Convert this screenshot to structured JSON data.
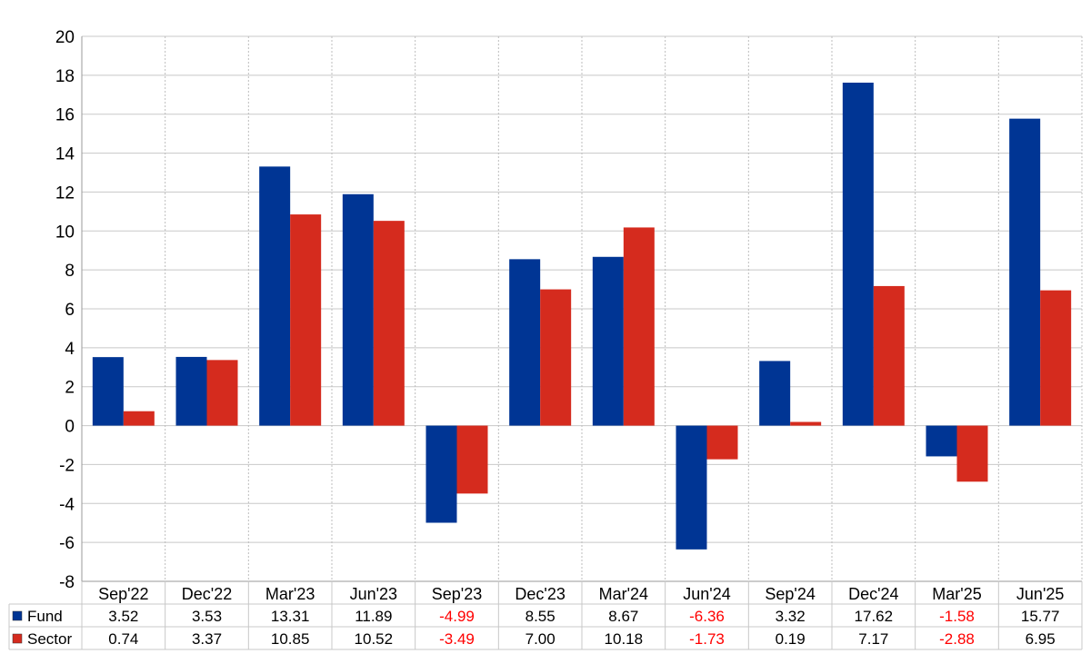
{
  "chart_data": {
    "type": "bar",
    "categories": [
      "Sep'22",
      "Dec'22",
      "Mar'23",
      "Jun'23",
      "Sep'23",
      "Dec'23",
      "Mar'24",
      "Jun'24",
      "Sep'24",
      "Dec'24",
      "Mar'25",
      "Jun'25"
    ],
    "series": [
      {
        "name": "Fund",
        "color": "#003594",
        "values": [
          3.52,
          3.53,
          13.31,
          11.89,
          -4.99,
          8.55,
          8.67,
          -6.36,
          3.32,
          17.62,
          -1.58,
          15.77
        ],
        "labels": [
          "3.52",
          "3.53",
          "13.31",
          "11.89",
          "-4.99",
          "8.55",
          "8.67",
          "-6.36",
          "3.32",
          "17.62",
          "-1.58",
          "15.77"
        ]
      },
      {
        "name": "Sector",
        "color": "#d52b1e",
        "values": [
          0.74,
          3.37,
          10.85,
          10.52,
          -3.49,
          7.0,
          10.18,
          -1.73,
          0.19,
          7.17,
          -2.88,
          6.95
        ],
        "labels": [
          "0.74",
          "3.37",
          "10.85",
          "10.52",
          "-3.49",
          "7.00",
          "10.18",
          "-1.73",
          "0.19",
          "7.17",
          "-2.88",
          "6.95"
        ]
      }
    ],
    "ylim": [
      -8,
      20
    ],
    "yticks": [
      "-8",
      "-6",
      "-4",
      "-2",
      "0",
      "2",
      "4",
      "6",
      "8",
      "10",
      "12",
      "14",
      "16",
      "18",
      "20"
    ],
    "grid": true,
    "negative_value_color": "#ff0000",
    "legend": "data table below chart"
  }
}
